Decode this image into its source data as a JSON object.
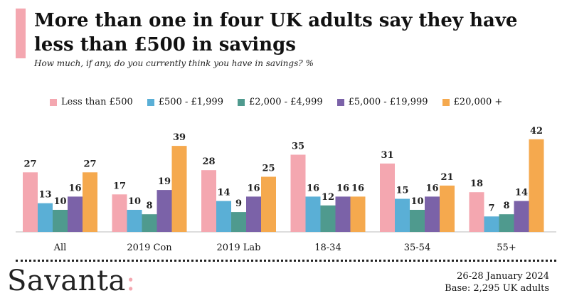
{
  "header": {
    "title": "More than one in four UK adults say they have less than £500 in savings",
    "subtitle": "How much, if any, do you currently think you have in savings? %"
  },
  "footer": {
    "date": "26-28 January 2024",
    "base": "Base: 2,295 UK adults"
  },
  "logo": {
    "name": "Savanta",
    "colon": ":"
  },
  "colors": {
    "accent": "#f4a7b0"
  },
  "chart_data": {
    "type": "bar",
    "categories": [
      "All",
      "2019 Con",
      "2019 Lab",
      "18-34",
      "35-54",
      "55+"
    ],
    "series": [
      {
        "name": "Less than £500",
        "color": "#f4a7b0",
        "values": [
          27,
          17,
          28,
          35,
          31,
          18
        ]
      },
      {
        "name": "£500 - £1,999",
        "color": "#5aafd6",
        "values": [
          13,
          10,
          14,
          16,
          15,
          7
        ]
      },
      {
        "name": "£2,000 - £4,999",
        "color": "#4f9a8e",
        "values": [
          10,
          8,
          9,
          12,
          10,
          8
        ]
      },
      {
        "name": "£5,000 - £19,999",
        "color": "#7b62a8",
        "values": [
          16,
          19,
          16,
          16,
          16,
          14
        ]
      },
      {
        "name": "£20,000 +",
        "color": "#f5a94e",
        "values": [
          27,
          39,
          25,
          16,
          21,
          42
        ]
      }
    ],
    "ylim": [
      0,
      45
    ],
    "grid": false,
    "legend_position": "top",
    "data_labels": true
  }
}
